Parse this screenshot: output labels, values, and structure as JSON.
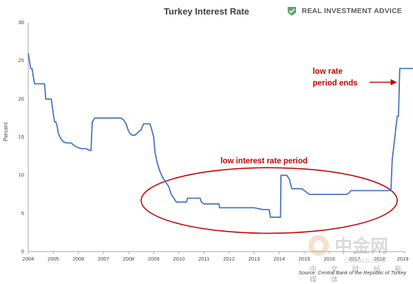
{
  "brand": {
    "name": "REAL INVESTMENT ADVICE",
    "logo_icon": "checkmark-shield-icon",
    "color": "#5aa46f"
  },
  "chart_data": {
    "type": "line",
    "title": "Turkey Interest Rate",
    "xlabel": "",
    "ylabel": "Percent",
    "xlim": [
      2004,
      2019
    ],
    "ylim": [
      0,
      30
    ],
    "yticks": [
      0,
      5,
      10,
      15,
      20,
      25,
      30
    ],
    "xticks": [
      2004,
      2005,
      2006,
      2007,
      2008,
      2009,
      2010,
      2011,
      2012,
      2013,
      2014,
      2015,
      2016,
      2017,
      2018,
      2019
    ],
    "grid": false,
    "line_color": "#4472c4",
    "annotation_color": "#c00000",
    "series": [
      {
        "name": "Turkey Interest Rate",
        "x": [
          2004,
          2004.1,
          2004.15,
          2004.25,
          2004.4,
          2004.65,
          2004.7,
          2004.92,
          2005.0,
          2005.05,
          2005.1,
          2005.15,
          2005.2,
          2005.3,
          2005.4,
          2005.5,
          2005.7,
          2005.9,
          2006.1,
          2006.3,
          2006.45,
          2006.5,
          2006.55,
          2006.65,
          2007.0,
          2007.5,
          2007.7,
          2007.8,
          2007.85,
          2007.9,
          2007.95,
          2008.0,
          2008.05,
          2008.15,
          2008.25,
          2008.5,
          2008.6,
          2008.7,
          2008.85,
          2008.9,
          2009.0,
          2009.05,
          2009.15,
          2009.25,
          2009.35,
          2009.45,
          2009.5,
          2009.55,
          2009.6,
          2009.65,
          2009.7,
          2009.75,
          2009.8,
          2009.9,
          2010.0,
          2010.3,
          2010.35,
          2010.5,
          2010.85,
          2010.9,
          2011.0,
          2011.6,
          2011.62,
          2012.0,
          2012.5,
          2013.0,
          2013.35,
          2013.6,
          2013.65,
          2014.05,
          2014.07,
          2014.3,
          2014.4,
          2014.5,
          2014.9,
          2015.0,
          2015.1,
          2015.2,
          2016.0,
          2016.7,
          2016.8,
          2016.85,
          2017.0,
          2018.4,
          2018.45,
          2018.5,
          2018.7,
          2018.75,
          2018.8,
          2019.0,
          2019.4
        ],
        "values": [
          26,
          24,
          24,
          22,
          22,
          22,
          20,
          20,
          18,
          17,
          17,
          16.5,
          15.5,
          14.8,
          14.4,
          14.25,
          14.25,
          13.75,
          13.5,
          13.5,
          13.25,
          13.25,
          17,
          17.5,
          17.5,
          17.5,
          17.5,
          17.25,
          17,
          16.75,
          16.25,
          15.75,
          15.5,
          15.25,
          15.25,
          16,
          16.75,
          16.75,
          16.75,
          16.25,
          15,
          13,
          11.5,
          10.5,
          9.75,
          9.25,
          9,
          8.75,
          8.5,
          8,
          7.5,
          7.25,
          7,
          6.5,
          6.5,
          6.5,
          7,
          7,
          7,
          6.5,
          6.25,
          6.25,
          5.75,
          5.75,
          5.75,
          5.75,
          5.5,
          5.5,
          4.5,
          4.5,
          10,
          10,
          9.5,
          8.25,
          8.25,
          8,
          7.75,
          7.5,
          7.5,
          7.5,
          7.75,
          8,
          8,
          8,
          8,
          12,
          17.75,
          17.75,
          24,
          24,
          24
        ]
      }
    ],
    "annotations": [
      {
        "text": "low interest rate period",
        "x": 2013.8,
        "y": 11.8
      },
      {
        "text_line1": "low rate",
        "text_line2": "period ends",
        "x": 2015.5,
        "y": 22.3
      }
    ],
    "highlight_ellipse": {
      "cx": 2013.6,
      "cy": 6.7,
      "rx": 5.1,
      "ry": 4.3
    },
    "arrow": {
      "from": [
        2017.6,
        22.2
      ],
      "to": [
        2018.65,
        22.2
      ]
    },
    "source": "Source: Central Bank of the Republic of Turkey"
  },
  "watermark": {
    "main": "中金网",
    "sub": "中 文 财 经 新 媒 体",
    "url": "CNGOLD.COM"
  }
}
